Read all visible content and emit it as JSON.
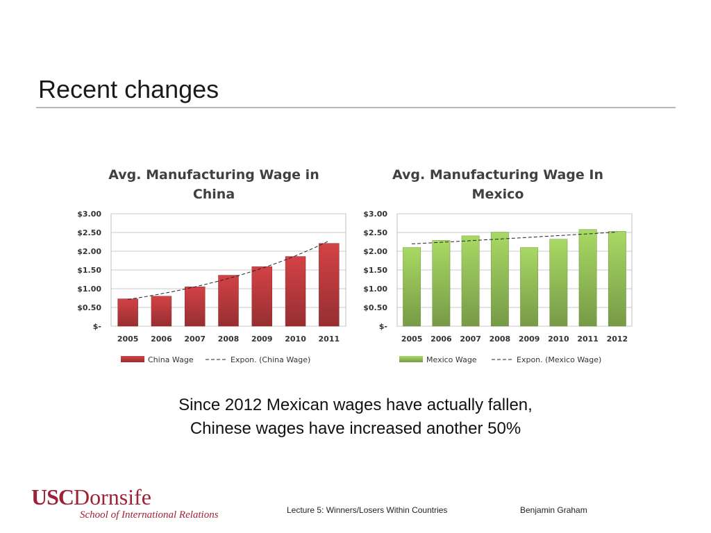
{
  "slide": {
    "title": "Recent changes",
    "caption_line1": "Since 2012 Mexican wages have actually fallen,",
    "caption_line2": "Chinese wages have increased another 50%",
    "footer_lecture": "Lecture 5: Winners/Losers Within Countries",
    "footer_author": "Benjamin Graham",
    "logo_usc": "USC",
    "logo_dornsife": "Dornsife",
    "logo_sub": "School of International Relations"
  },
  "chart_data": [
    {
      "type": "bar",
      "title_line1": "Avg. Manufacturing Wage in",
      "title_line2": "China",
      "categories": [
        "2005",
        "2006",
        "2007",
        "2008",
        "2009",
        "2010",
        "2011"
      ],
      "series": [
        {
          "name": "China Wage",
          "values": [
            0.73,
            0.8,
            1.05,
            1.36,
            1.59,
            1.86,
            2.21
          ],
          "color": "#b0373a"
        }
      ],
      "trendline": {
        "name": "Expon. (China Wage)",
        "type": "exponential"
      },
      "ylim": [
        0,
        3
      ],
      "yticks": [
        0,
        0.5,
        1,
        1.5,
        2,
        2.5,
        3
      ],
      "ytick_labels": [
        "$-",
        "$0.50",
        "$1.00",
        "$1.50",
        "$2.00",
        "$2.50",
        "$3.00"
      ],
      "grid": true,
      "legend": "bottom"
    },
    {
      "type": "bar",
      "title_line1": "Avg. Manufacturing Wage In",
      "title_line2": "Mexico",
      "categories": [
        "2005",
        "2006",
        "2007",
        "2008",
        "2009",
        "2010",
        "2011",
        "2012"
      ],
      "series": [
        {
          "name": "Mexico Wage",
          "values": [
            2.1,
            2.29,
            2.41,
            2.51,
            2.1,
            2.32,
            2.58,
            2.53
          ],
          "color": "#8cb553"
        }
      ],
      "trendline": {
        "name": "Expon. (Mexico Wage)",
        "type": "exponential"
      },
      "ylim": [
        0,
        3
      ],
      "yticks": [
        0,
        0.5,
        1,
        1.5,
        2,
        2.5,
        3
      ],
      "ytick_labels": [
        "$-",
        "$0.50",
        "$1.00",
        "$1.50",
        "$2.00",
        "$2.50",
        "$3.00"
      ],
      "grid": true,
      "legend": "bottom"
    }
  ]
}
